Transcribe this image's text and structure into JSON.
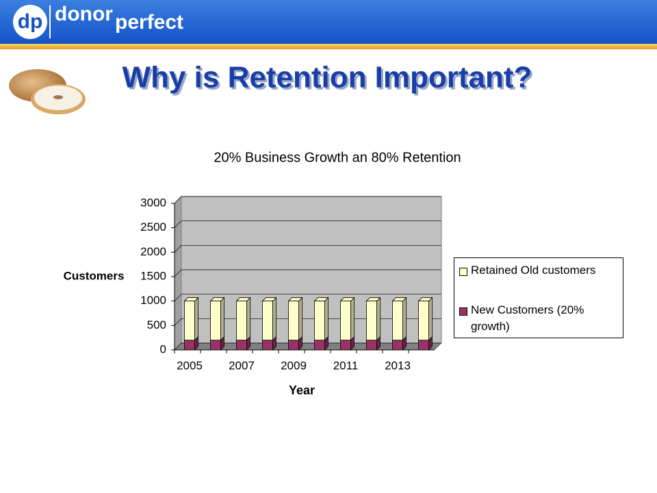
{
  "header": {
    "logo_mark": "dp",
    "logo_word": [
      "donor",
      "perfect"
    ]
  },
  "title": "Why is Retention Important?",
  "chart_data": {
    "type": "bar",
    "stacked": true,
    "title": "20% Business Growth an 80% Retention",
    "x_label": "Year",
    "y_label": "Customers",
    "categories": [
      "2005",
      null,
      "2007",
      null,
      "2009",
      null,
      "2011",
      null,
      "2013",
      null
    ],
    "series": [
      {
        "name": "Retained Old customers",
        "color": "#ffffcc",
        "values": [
          800,
          800,
          800,
          800,
          800,
          800,
          800,
          800,
          800,
          800
        ]
      },
      {
        "name": "New Customers (20% growth)",
        "color": "#993366",
        "values": [
          200,
          200,
          200,
          200,
          200,
          200,
          200,
          200,
          200,
          200
        ]
      }
    ],
    "ylim": [
      0,
      3000
    ],
    "yticks": [
      0,
      500,
      1000,
      1500,
      2000,
      2500,
      3000
    ],
    "grid": true,
    "legend": "right",
    "plot_color": "#c0c0c0"
  }
}
